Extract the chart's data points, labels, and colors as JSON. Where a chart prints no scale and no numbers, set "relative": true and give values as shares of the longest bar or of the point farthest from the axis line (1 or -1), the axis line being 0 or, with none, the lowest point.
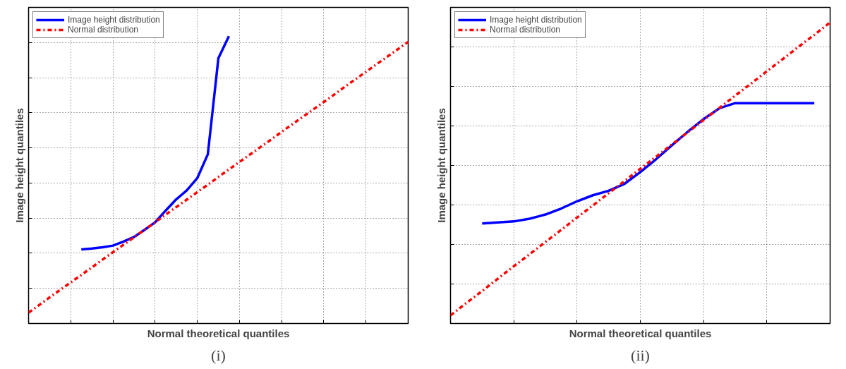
{
  "chart_data": [
    {
      "type": "line",
      "xlabel": "Normal theoretical quantiles",
      "ylabel": "Image height quantiles",
      "annotations": [
        "(i)"
      ],
      "relative": true,
      "tick_labels": false,
      "grid": true,
      "legend": "top left",
      "categories": [
        null,
        null,
        null,
        null,
        null,
        null,
        null,
        null,
        null,
        null,
        null,
        null,
        null,
        null,
        null,
        null,
        null,
        null,
        null,
        null,
        null,
        null,
        null,
        null,
        null,
        null,
        null,
        null,
        null,
        null,
        null,
        null,
        null,
        null,
        null,
        null,
        null
      ],
      "series": [
        {
          "name": "Image height distribution",
          "color": "#0000ff",
          "line_style": "solid",
          "values": [
            null,
            null,
            null,
            null,
            null,
            0.258,
            0.261,
            0.265,
            0.271,
            0.285,
            0.301,
            0.326,
            0.352,
            0.393,
            0.432,
            0.463,
            0.506,
            0.589,
            0.923,
            1.0,
            null,
            null,
            null,
            null,
            null,
            null,
            null,
            null,
            null,
            null,
            null,
            null,
            null,
            null,
            null,
            null,
            null
          ]
        },
        {
          "name": "Normal distribution",
          "color": "#ff0000",
          "line_style": "dashdot",
          "values": [
            0.038,
            0.064,
            0.091,
            0.117,
            0.143,
            0.169,
            0.195,
            0.222,
            0.248,
            0.274,
            0.3,
            0.326,
            0.352,
            0.379,
            0.405,
            0.431,
            0.457,
            0.483,
            0.51,
            0.536,
            0.562,
            0.588,
            0.614,
            0.64,
            0.667,
            0.693,
            0.719,
            0.745,
            0.771,
            0.797,
            0.824,
            0.85,
            0.876,
            0.902,
            0.928,
            0.954,
            0.98
          ]
        }
      ]
    },
    {
      "type": "line",
      "xlabel": "Normal theoretical quantiles",
      "ylabel": "Image height quantiles",
      "annotations": [
        "(ii)"
      ],
      "relative": true,
      "tick_labels": false,
      "grid": true,
      "legend": "top left",
      "categories": [
        null,
        null,
        null,
        null,
        null,
        null,
        null,
        null,
        null,
        null,
        null,
        null,
        null,
        null,
        null,
        null,
        null,
        null,
        null,
        null,
        null,
        null,
        null,
        null,
        null
      ],
      "series": [
        {
          "name": "Image height distribution",
          "color": "#0000ff",
          "line_style": "solid",
          "values": [
            null,
            null,
            0.332,
            0.336,
            0.339,
            0.348,
            0.362,
            0.382,
            0.406,
            0.426,
            0.441,
            0.464,
            0.503,
            0.546,
            0.592,
            0.637,
            0.679,
            0.715,
            0.732,
            0.732,
            0.732,
            0.732,
            0.732,
            0.732,
            null
          ]
        },
        {
          "name": "Normal distribution",
          "color": "#ff0000",
          "line_style": "dashdot",
          "values": [
            0.027,
            0.068,
            0.108,
            0.149,
            0.19,
            0.23,
            0.271,
            0.311,
            0.352,
            0.392,
            0.433,
            0.473,
            0.514,
            0.554,
            0.595,
            0.635,
            0.676,
            0.716,
            0.757,
            0.797,
            0.838,
            0.878,
            0.919,
            0.959,
            1.0
          ]
        }
      ]
    }
  ]
}
